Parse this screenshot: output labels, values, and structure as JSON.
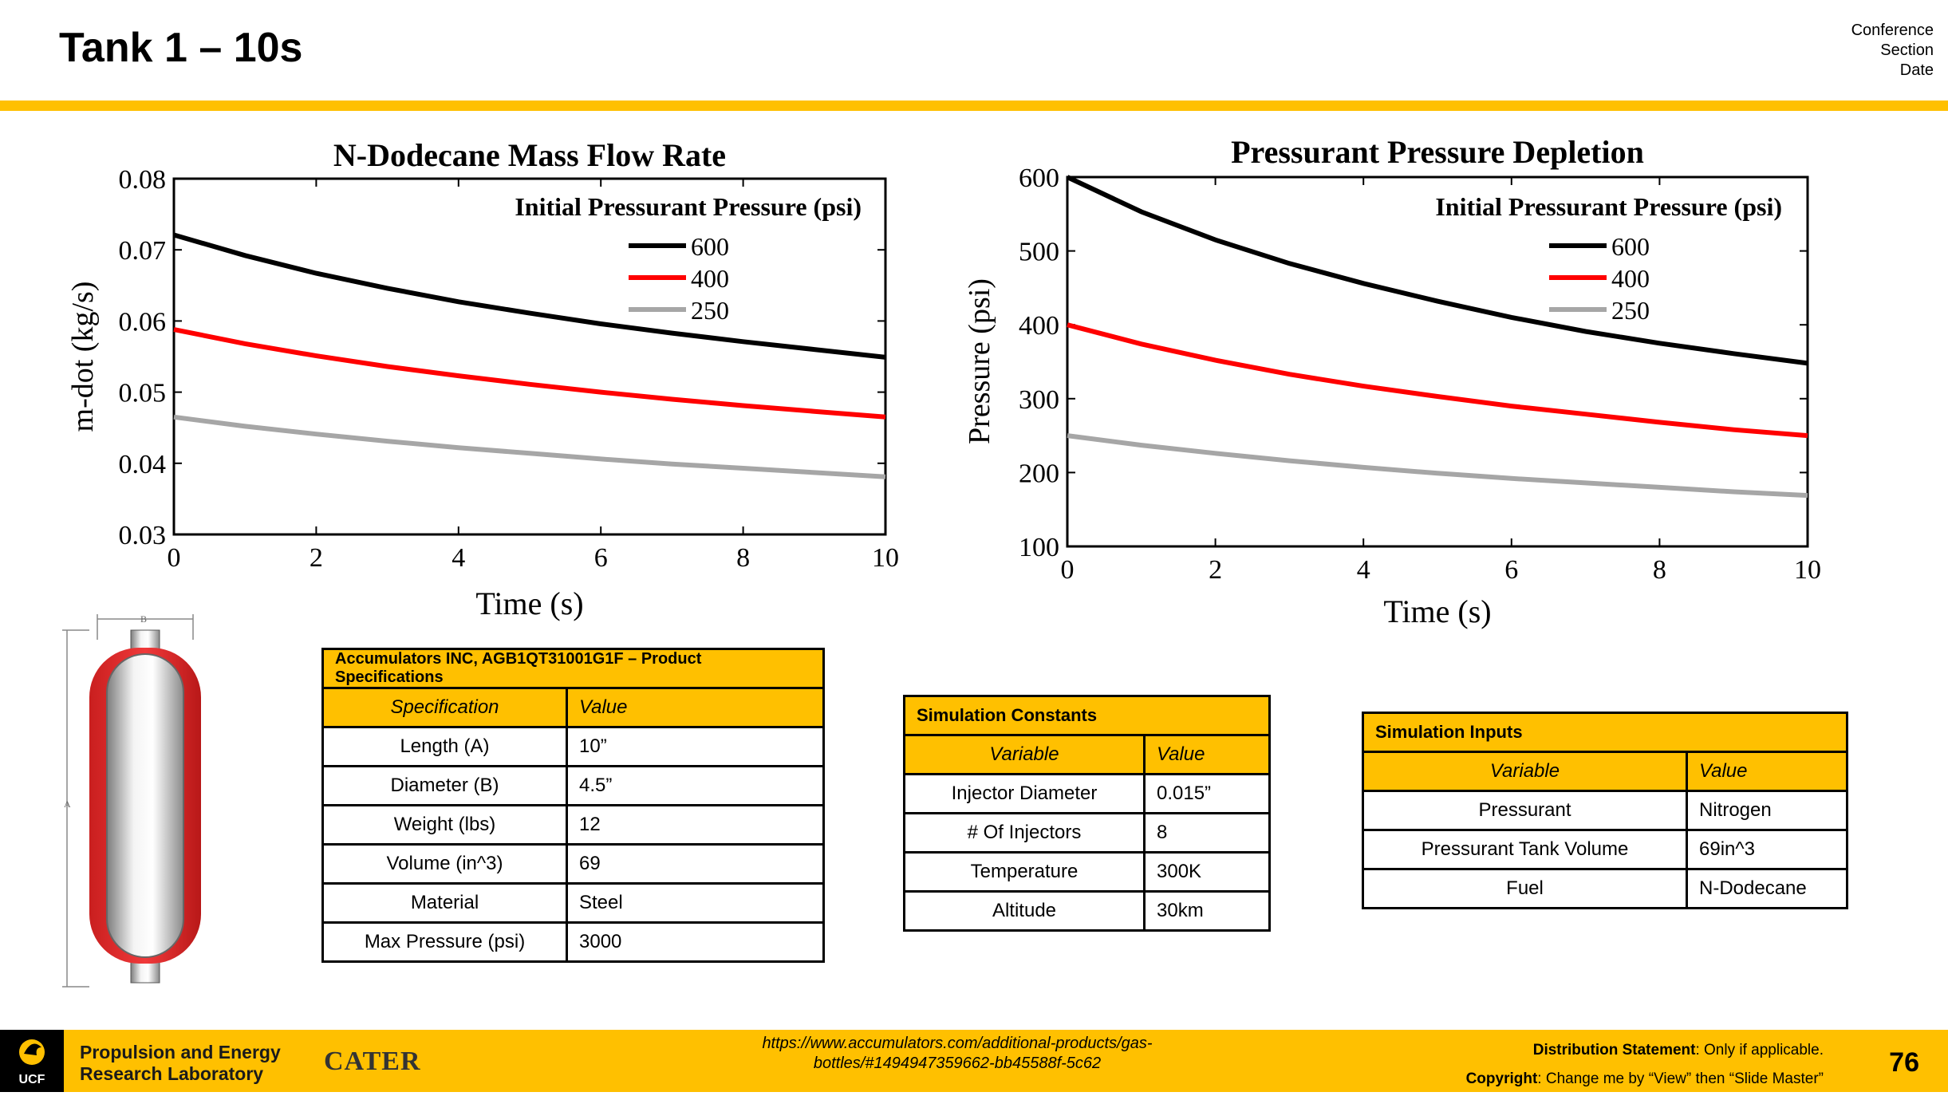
{
  "slide": {
    "title": "Tank 1 – 10s",
    "meta": [
      "Conference",
      "Section",
      "Date"
    ],
    "page_number": "76",
    "accent_color": "#FFC000"
  },
  "chart_data": [
    {
      "type": "line",
      "title": "N-Dodecane Mass Flow Rate",
      "xlabel": "Time (s)",
      "ylabel": "m-dot (kg/s)",
      "xlim": [
        0,
        10
      ],
      "ylim": [
        0.03,
        0.08
      ],
      "xticks": [
        "0",
        "2",
        "4",
        "6",
        "8",
        "10"
      ],
      "yticks": [
        "0.03",
        "0.04",
        "0.05",
        "0.06",
        "0.07",
        "0.08"
      ],
      "legend_title": "Initial Pressurant Pressure (psi)",
      "legend_position": "top-right",
      "x": [
        0,
        1,
        2,
        3,
        4,
        5,
        6,
        7,
        8,
        9,
        10
      ],
      "series": [
        {
          "name": "600",
          "color": "#000000",
          "values": [
            0.0721,
            0.0692,
            0.0667,
            0.0646,
            0.0627,
            0.0611,
            0.0596,
            0.0583,
            0.0571,
            0.056,
            0.0549
          ]
        },
        {
          "name": "400",
          "color": "#FF0000",
          "values": [
            0.0588,
            0.0568,
            0.0551,
            0.0536,
            0.0523,
            0.0511,
            0.05,
            0.049,
            0.0481,
            0.0473,
            0.0465
          ]
        },
        {
          "name": "250",
          "color": "#A6A6A6",
          "values": [
            0.0465,
            0.0452,
            0.0441,
            0.0431,
            0.0422,
            0.0414,
            0.0406,
            0.0399,
            0.0393,
            0.0387,
            0.0381
          ]
        }
      ]
    },
    {
      "type": "line",
      "title": "Pressurant Pressure Depletion",
      "xlabel": "Time (s)",
      "ylabel": "Pressure (psi)",
      "xlim": [
        0,
        10
      ],
      "ylim": [
        100,
        600
      ],
      "xticks": [
        "0",
        "2",
        "4",
        "6",
        "8",
        "10"
      ],
      "yticks": [
        "100",
        "200",
        "300",
        "400",
        "500",
        "600"
      ],
      "legend_title": "Initial Pressurant Pressure (psi)",
      "legend_position": "top-right",
      "x": [
        0,
        1,
        2,
        3,
        4,
        5,
        6,
        7,
        8,
        9,
        10
      ],
      "series": [
        {
          "name": "600",
          "color": "#000000",
          "values": [
            600,
            553,
            515,
            483,
            456,
            432,
            410,
            391,
            375,
            361,
            348
          ]
        },
        {
          "name": "400",
          "color": "#FF0000",
          "values": [
            400,
            374,
            352,
            333,
            317,
            303,
            290,
            279,
            268,
            258,
            250
          ]
        },
        {
          "name": "250",
          "color": "#A6A6A6",
          "values": [
            250,
            237,
            226,
            216,
            207,
            199,
            192,
            186,
            180,
            174,
            169
          ]
        }
      ]
    }
  ],
  "tank_diagram": {
    "label_a": "A",
    "label_b": "B"
  },
  "product_table": {
    "title": "Accumulators INC, AGB1QT31001G1F – Product Specifications",
    "col1": "Specification",
    "col2": "Value",
    "rows": [
      {
        "spec": "Length (A)",
        "value": "10”"
      },
      {
        "spec": "Diameter (B)",
        "value": "4.5”"
      },
      {
        "spec": "Weight (lbs)",
        "value": "12"
      },
      {
        "spec": "Volume (in^3)",
        "value": "69"
      },
      {
        "spec": "Material",
        "value": "Steel"
      },
      {
        "spec": "Max Pressure (psi)",
        "value": "3000"
      }
    ]
  },
  "constants_table": {
    "title": "Simulation Constants",
    "col1": "Variable",
    "col2": "Value",
    "rows": [
      {
        "var": "Injector Diameter",
        "value": "0.015”"
      },
      {
        "var": "# Of Injectors",
        "value": "8"
      },
      {
        "var": "Temperature",
        "value": "300K"
      },
      {
        "var": "Altitude",
        "value": "30km"
      }
    ]
  },
  "inputs_table": {
    "title": "Simulation Inputs",
    "col1": "Variable",
    "col2": "Value",
    "rows": [
      {
        "var": "Pressurant",
        "value": "Nitrogen"
      },
      {
        "var": "Pressurant Tank Volume",
        "value": "69in^3"
      },
      {
        "var": "Fuel",
        "value": "N-Dodecane"
      }
    ]
  },
  "footer": {
    "ucf_label": "UCF",
    "lab_line1": "Propulsion and Energy",
    "lab_line2": "Research Laboratory",
    "cater_logo": "CATER",
    "url": "https://www.accumulators.com/additional-products/gas-bottles/#1494947359662-bb45588f-5c62",
    "dist_label": "Distribution Statement",
    "dist_text": ": Only if applicable.",
    "copy_label": "Copyright",
    "copy_text": ": Change me by “View” then “Slide Master”"
  }
}
